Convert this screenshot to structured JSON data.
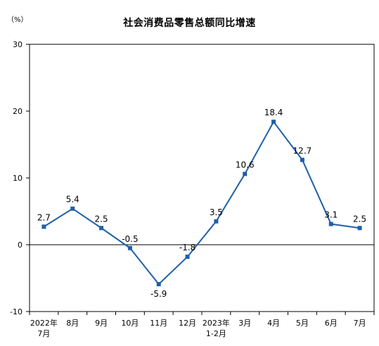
{
  "chart_data": {
    "type": "line",
    "title": "社会消费品零售总额同比增速",
    "unit": "（%）",
    "categories": [
      {
        "line1": "2022年",
        "line2": "7月"
      },
      {
        "line1": "8月",
        "line2": ""
      },
      {
        "line1": "9月",
        "line2": ""
      },
      {
        "line1": "10月",
        "line2": ""
      },
      {
        "line1": "11月",
        "line2": ""
      },
      {
        "line1": "12月",
        "line2": ""
      },
      {
        "line1": "2023年",
        "line2": "1-2月"
      },
      {
        "line1": "3月",
        "line2": ""
      },
      {
        "line1": "4月",
        "line2": ""
      },
      {
        "line1": "5月",
        "line2": ""
      },
      {
        "line1": "6月",
        "line2": ""
      },
      {
        "line1": "7月",
        "line2": ""
      }
    ],
    "series": [
      {
        "values": [
          2.7,
          5.4,
          2.5,
          -0.5,
          -5.9,
          -1.8,
          3.5,
          10.6,
          18.4,
          12.7,
          3.1,
          2.5
        ]
      }
    ],
    "data_labels": [
      "2.7",
      "5.4",
      "2.5",
      "-0.5",
      "-5.9",
      "-1.8",
      "3.5",
      "10.6",
      "18.4",
      "12.7",
      "3.1",
      "2.5"
    ],
    "ylim": [
      -10,
      30
    ],
    "yticks": [
      -10,
      0,
      10,
      20,
      30
    ],
    "grid": false,
    "legend": "none",
    "colors": {
      "line": "#1f5fa8",
      "marker": "#1f5fa8",
      "axis": "#000000"
    }
  }
}
